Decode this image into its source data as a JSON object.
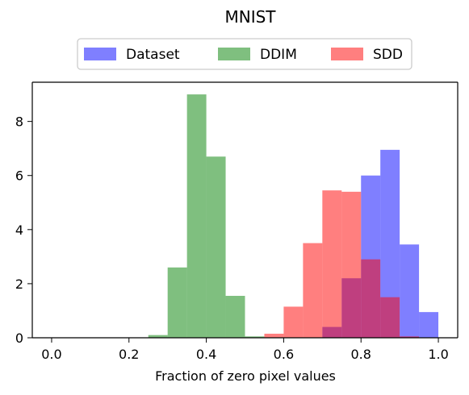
{
  "chart_data": {
    "type": "bar",
    "title": "MNIST",
    "xlabel": "Fraction of zero pixel values",
    "ylabel": "",
    "xlim": [
      -0.05,
      1.05
    ],
    "ylim": [
      0,
      9.45
    ],
    "x_ticks": [
      0.0,
      0.2,
      0.4,
      0.6,
      0.8,
      1.0
    ],
    "x_tick_labels": [
      "0.0",
      "0.2",
      "0.4",
      "0.6",
      "0.8",
      "1.0"
    ],
    "y_ticks": [
      0,
      2,
      4,
      6,
      8
    ],
    "y_tick_labels": [
      "0",
      "2",
      "4",
      "6",
      "8"
    ],
    "bin_width": 0.05,
    "legend_position": "top-center",
    "series": [
      {
        "name": "Dataset",
        "color": "#0000ff",
        "opacity": 0.5,
        "bins": [
          {
            "x": 0.7,
            "y": 0.4
          },
          {
            "x": 0.75,
            "y": 2.2
          },
          {
            "x": 0.8,
            "y": 6.0
          },
          {
            "x": 0.85,
            "y": 6.95
          },
          {
            "x": 0.9,
            "y": 3.45
          },
          {
            "x": 0.95,
            "y": 0.95
          }
        ]
      },
      {
        "name": "DDIM",
        "color": "#008000",
        "opacity": 0.5,
        "bins": [
          {
            "x": 0.25,
            "y": 0.1
          },
          {
            "x": 0.3,
            "y": 2.6
          },
          {
            "x": 0.35,
            "y": 9.0
          },
          {
            "x": 0.4,
            "y": 6.7
          },
          {
            "x": 0.45,
            "y": 1.55
          },
          {
            "x": 0.5,
            "y": 0.05
          }
        ]
      },
      {
        "name": "SDD",
        "color": "#ff0000",
        "opacity": 0.5,
        "bins": [
          {
            "x": 0.55,
            "y": 0.15
          },
          {
            "x": 0.6,
            "y": 1.15
          },
          {
            "x": 0.65,
            "y": 3.5
          },
          {
            "x": 0.7,
            "y": 5.45
          },
          {
            "x": 0.75,
            "y": 5.4
          },
          {
            "x": 0.8,
            "y": 2.9
          },
          {
            "x": 0.85,
            "y": 1.5
          },
          {
            "x": 0.9,
            "y": 0.05
          }
        ]
      }
    ]
  }
}
